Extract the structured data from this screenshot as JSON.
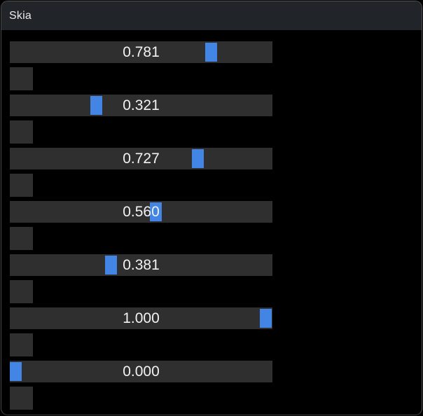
{
  "window": {
    "title": "Skia"
  },
  "colors": {
    "background": "#000000",
    "titlebar": "#212428",
    "track": "#2f2f2f",
    "accent": "#4285e4",
    "text": "#f2f2f2",
    "border": "#525252"
  },
  "sliders": [
    {
      "label": "0.781",
      "value": 0.781
    },
    {
      "label": "0.321",
      "value": 0.321
    },
    {
      "label": "0.727",
      "value": 0.727
    },
    {
      "label": "0.560",
      "value": 0.56
    },
    {
      "label": "0.381",
      "value": 0.381
    },
    {
      "label": "1.000",
      "value": 1.0
    },
    {
      "label": "0.000",
      "value": 0.0
    }
  ]
}
